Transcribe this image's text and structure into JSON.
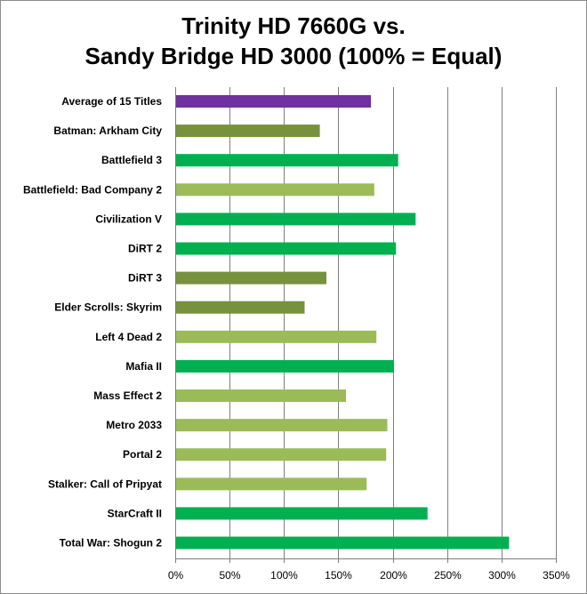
{
  "chart_data": {
    "type": "bar",
    "orientation": "horizontal",
    "title_lines": [
      "Trinity HD 7660G vs.",
      "Sandy Bridge HD 3000 (100% = Equal)"
    ],
    "xlabel": "",
    "ylabel": "",
    "xlim": [
      0,
      350
    ],
    "x_ticks": [
      "0%",
      "50%",
      "100%",
      "150%",
      "200%",
      "250%",
      "300%",
      "350%"
    ],
    "grid": "vertical major gridlines",
    "legend": "none",
    "categories": [
      "Average of 15 Titles",
      "Batman: Arkham City",
      "Battlefield 3",
      "Battlefield: Bad Company 2",
      "Civilization V",
      "DiRT 2",
      "DiRT 3",
      "Elder Scrolls: Skyrim",
      "Left 4 Dead 2",
      "Mafia II",
      "Mass Effect 2",
      "Metro 2033",
      "Portal 2",
      "Stalker: Call of Pripyat",
      "StarCraft II",
      "Total War: Shogun 2"
    ],
    "values": [
      180,
      133,
      205,
      183,
      221,
      203,
      139,
      119,
      185,
      201,
      157,
      195,
      194,
      176,
      232,
      307
    ],
    "bar_colors": [
      "#7030a0",
      "#76923c",
      "#00b050",
      "#9bbb59",
      "#00b050",
      "#00b050",
      "#76923c",
      "#76923c",
      "#9bbb59",
      "#00b050",
      "#9bbb59",
      "#9bbb59",
      "#9bbb59",
      "#9bbb59",
      "#00b050",
      "#00b050"
    ]
  }
}
